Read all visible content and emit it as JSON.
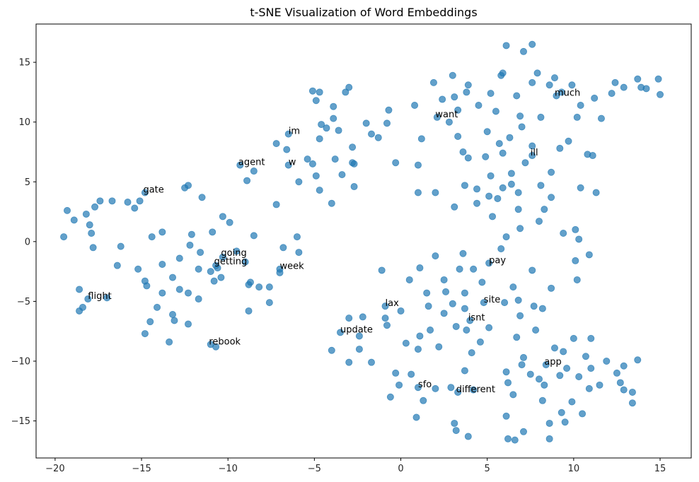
{
  "chart_data": {
    "type": "scatter",
    "title": "t-SNE Visualization of Word Embeddings",
    "xlabel": "",
    "ylabel": "",
    "xlim": [
      -21.1,
      16.8
    ],
    "ylim": [
      -18.1,
      18.2
    ],
    "xticks": [
      -20,
      -15,
      -10,
      -5,
      0,
      5,
      10,
      15
    ],
    "yticks": [
      -15,
      -10,
      -5,
      0,
      5,
      10,
      15
    ],
    "grid": false,
    "point_color": "#1f77b4",
    "point_opacity": 0.7,
    "points": [
      [
        -19.5,
        0.4
      ],
      [
        -19.3,
        2.6
      ],
      [
        -18.9,
        1.8
      ],
      [
        -18.6,
        -4.0
      ],
      [
        -18.6,
        -5.8
      ],
      [
        -18.4,
        -5.5
      ],
      [
        -18.2,
        2.3
      ],
      [
        -18.1,
        -4.8
      ],
      [
        -18.0,
        1.4
      ],
      [
        -17.9,
        0.7
      ],
      [
        -17.8,
        -0.5
      ],
      [
        -17.7,
        2.9
      ],
      [
        -17.4,
        3.4
      ],
      [
        -17.0,
        -4.7
      ],
      [
        -16.7,
        3.4
      ],
      [
        -16.4,
        -2.0
      ],
      [
        -16.2,
        -0.4
      ],
      [
        -15.8,
        3.3
      ],
      [
        -15.4,
        2.8
      ],
      [
        -15.2,
        -2.3
      ],
      [
        -15.1,
        3.4
      ],
      [
        -14.8,
        4.1
      ],
      [
        -14.8,
        -7.7
      ],
      [
        -14.8,
        -3.3
      ],
      [
        -14.7,
        -3.7
      ],
      [
        -14.5,
        -6.7
      ],
      [
        -14.4,
        0.4
      ],
      [
        -14.1,
        -5.5
      ],
      [
        -13.8,
        -1.9
      ],
      [
        -13.8,
        0.8
      ],
      [
        -13.8,
        -4.3
      ],
      [
        -13.4,
        -8.4
      ],
      [
        -13.2,
        -6.1
      ],
      [
        -13.2,
        -3.0
      ],
      [
        -13.1,
        -6.6
      ],
      [
        -12.8,
        -4.0
      ],
      [
        -12.8,
        -1.4
      ],
      [
        -12.5,
        4.5
      ],
      [
        -12.3,
        4.7
      ],
      [
        -12.3,
        -4.3
      ],
      [
        -12.3,
        -6.9
      ],
      [
        -12.2,
        -0.3
      ],
      [
        -12.1,
        0.6
      ],
      [
        -11.7,
        -4.8
      ],
      [
        -11.7,
        -2.3
      ],
      [
        -11.6,
        -0.9
      ],
      [
        -11.5,
        3.7
      ],
      [
        -11.0,
        -2.5
      ],
      [
        -11.0,
        -8.6
      ],
      [
        -10.9,
        0.8
      ],
      [
        -10.8,
        -3.3
      ],
      [
        -10.7,
        -8.8
      ],
      [
        -10.7,
        -2.0
      ],
      [
        -10.6,
        -2.2
      ],
      [
        -10.4,
        -3.0
      ],
      [
        -10.3,
        2.1
      ],
      [
        -10.3,
        -1.3
      ],
      [
        -9.9,
        1.6
      ],
      [
        -9.5,
        -0.8
      ],
      [
        -9.3,
        6.4
      ],
      [
        -9.0,
        -1.7
      ],
      [
        -8.9,
        5.1
      ],
      [
        -8.8,
        -5.8
      ],
      [
        -8.8,
        -3.6
      ],
      [
        -8.7,
        -3.4
      ],
      [
        -8.5,
        0.5
      ],
      [
        -8.5,
        5.9
      ],
      [
        -8.2,
        -3.8
      ],
      [
        -7.6,
        -3.8
      ],
      [
        -7.6,
        -5.1
      ],
      [
        -7.2,
        3.1
      ],
      [
        -7.2,
        8.2
      ],
      [
        -7.0,
        -2.3
      ],
      [
        -7.0,
        -2.6
      ],
      [
        -6.8,
        -0.5
      ],
      [
        -6.6,
        7.7
      ],
      [
        -6.5,
        6.4
      ],
      [
        -6.5,
        9.0
      ],
      [
        -6.0,
        0.4
      ],
      [
        -5.9,
        -0.9
      ],
      [
        -5.9,
        5.0
      ],
      [
        -5.4,
        6.9
      ],
      [
        -5.1,
        6.5
      ],
      [
        -5.1,
        12.6
      ],
      [
        -4.9,
        5.5
      ],
      [
        -4.9,
        11.8
      ],
      [
        -4.7,
        8.6
      ],
      [
        -4.7,
        4.3
      ],
      [
        -4.7,
        12.5
      ],
      [
        -4.6,
        9.8
      ],
      [
        -4.3,
        9.5
      ],
      [
        -4.0,
        3.2
      ],
      [
        -4.0,
        -9.1
      ],
      [
        -3.9,
        10.3
      ],
      [
        -3.9,
        11.3
      ],
      [
        -3.8,
        6.9
      ],
      [
        -3.6,
        9.3
      ],
      [
        -3.5,
        -7.6
      ],
      [
        -3.4,
        5.6
      ],
      [
        -3.2,
        12.5
      ],
      [
        -3.0,
        12.9
      ],
      [
        -3.0,
        -6.4
      ],
      [
        -3.0,
        -10.1
      ],
      [
        -2.8,
        6.6
      ],
      [
        -2.8,
        7.9
      ],
      [
        -2.7,
        6.5
      ],
      [
        -2.7,
        4.6
      ],
      [
        -2.4,
        -9.0
      ],
      [
        -2.4,
        -7.9
      ],
      [
        -2.2,
        -6.3
      ],
      [
        -2.0,
        9.9
      ],
      [
        -1.7,
        9.0
      ],
      [
        -1.7,
        -10.1
      ],
      [
        -1.3,
        8.7
      ],
      [
        -1.1,
        -2.4
      ],
      [
        -0.9,
        -5.4
      ],
      [
        -0.9,
        -6.4
      ],
      [
        -0.8,
        -7.0
      ],
      [
        -0.8,
        9.9
      ],
      [
        -0.7,
        11.0
      ],
      [
        -0.6,
        -13.0
      ],
      [
        -0.3,
        6.6
      ],
      [
        -0.3,
        -11.0
      ],
      [
        -0.1,
        -12.0
      ],
      [
        0.0,
        -5.8
      ],
      [
        0.3,
        -8.5
      ],
      [
        0.5,
        -3.2
      ],
      [
        0.6,
        -11.1
      ],
      [
        0.8,
        11.4
      ],
      [
        0.9,
        -14.7
      ],
      [
        1.0,
        -12.2
      ],
      [
        1.0,
        -9.0
      ],
      [
        1.0,
        6.4
      ],
      [
        1.0,
        4.1
      ],
      [
        1.1,
        -2.2
      ],
      [
        1.1,
        -7.9
      ],
      [
        1.2,
        8.6
      ],
      [
        1.3,
        -13.3
      ],
      [
        1.5,
        -4.3
      ],
      [
        1.6,
        -5.4
      ],
      [
        1.7,
        -7.4
      ],
      [
        1.9,
        13.3
      ],
      [
        2.0,
        4.1
      ],
      [
        2.0,
        -1.2
      ],
      [
        2.0,
        -12.3
      ],
      [
        2.1,
        10.4
      ],
      [
        2.2,
        -8.8
      ],
      [
        2.4,
        11.9
      ],
      [
        2.5,
        -6.0
      ],
      [
        2.5,
        -3.2
      ],
      [
        2.6,
        -4.2
      ],
      [
        2.8,
        10.0
      ],
      [
        2.9,
        -12.2
      ],
      [
        3.0,
        -5.2
      ],
      [
        3.0,
        13.9
      ],
      [
        3.1,
        2.9
      ],
      [
        3.1,
        -15.2
      ],
      [
        3.1,
        12.1
      ],
      [
        3.2,
        -7.1
      ],
      [
        3.3,
        -12.6
      ],
      [
        3.2,
        -15.8
      ],
      [
        3.3,
        8.8
      ],
      [
        3.3,
        11.0
      ],
      [
        3.4,
        -2.3
      ],
      [
        3.6,
        7.5
      ],
      [
        3.6,
        -1.0
      ],
      [
        3.7,
        -5.6
      ],
      [
        3.7,
        4.7
      ],
      [
        3.7,
        -10.8
      ],
      [
        3.7,
        -4.3
      ],
      [
        3.8,
        12.5
      ],
      [
        3.8,
        -7.4
      ],
      [
        3.9,
        7.0
      ],
      [
        3.9,
        13.1
      ],
      [
        3.9,
        -16.3
      ],
      [
        4.0,
        -6.6
      ],
      [
        4.1,
        -9.3
      ],
      [
        4.2,
        -12.4
      ],
      [
        4.2,
        -2.3
      ],
      [
        4.4,
        3.2
      ],
      [
        4.4,
        4.4
      ],
      [
        4.5,
        11.4
      ],
      [
        4.6,
        -8.4
      ],
      [
        4.7,
        -3.4
      ],
      [
        4.8,
        -5.1
      ],
      [
        4.9,
        7.1
      ],
      [
        5.0,
        9.2
      ],
      [
        5.1,
        3.8
      ],
      [
        5.1,
        -1.8
      ],
      [
        5.1,
        -7.2
      ],
      [
        5.2,
        5.5
      ],
      [
        5.2,
        12.4
      ],
      [
        5.3,
        2.1
      ],
      [
        5.5,
        10.9
      ],
      [
        5.6,
        3.6
      ],
      [
        5.7,
        8.2
      ],
      [
        5.8,
        -0.6
      ],
      [
        5.8,
        13.9
      ],
      [
        5.9,
        7.4
      ],
      [
        5.9,
        14.1
      ],
      [
        5.9,
        4.5
      ],
      [
        6.0,
        -5.1
      ],
      [
        6.1,
        0.4
      ],
      [
        6.1,
        16.4
      ],
      [
        6.1,
        -10.9
      ],
      [
        6.1,
        -14.6
      ],
      [
        6.2,
        -16.5
      ],
      [
        6.2,
        -11.8
      ],
      [
        6.3,
        8.7
      ],
      [
        6.4,
        4.8
      ],
      [
        6.4,
        5.7
      ],
      [
        6.5,
        -3.8
      ],
      [
        6.5,
        -12.8
      ],
      [
        6.6,
        -16.6
      ],
      [
        6.7,
        12.2
      ],
      [
        6.7,
        -8.0
      ],
      [
        6.8,
        2.7
      ],
      [
        6.8,
        -4.9
      ],
      [
        6.8,
        4.1
      ],
      [
        6.9,
        1.1
      ],
      [
        6.9,
        -6.2
      ],
      [
        6.9,
        10.5
      ],
      [
        7.0,
        -10.3
      ],
      [
        7.0,
        9.6
      ],
      [
        7.1,
        -9.7
      ],
      [
        7.1,
        15.9
      ],
      [
        7.1,
        -15.9
      ],
      [
        7.2,
        6.6
      ],
      [
        7.5,
        -11.1
      ],
      [
        7.6,
        13.3
      ],
      [
        7.6,
        8.0
      ],
      [
        7.6,
        7.2
      ],
      [
        7.6,
        -2.4
      ],
      [
        7.6,
        16.5
      ],
      [
        7.7,
        -5.4
      ],
      [
        7.8,
        -7.4
      ],
      [
        7.9,
        14.1
      ],
      [
        8.0,
        -11.5
      ],
      [
        8.0,
        1.7
      ],
      [
        8.1,
        4.7
      ],
      [
        8.1,
        10.4
      ],
      [
        8.2,
        -13.3
      ],
      [
        8.2,
        -5.6
      ],
      [
        8.3,
        2.7
      ],
      [
        8.3,
        -12.0
      ],
      [
        8.4,
        -10.3
      ],
      [
        8.6,
        13.1
      ],
      [
        8.6,
        -15.2
      ],
      [
        8.6,
        -16.5
      ],
      [
        8.7,
        3.7
      ],
      [
        8.7,
        5.8
      ],
      [
        8.7,
        -3.9
      ],
      [
        8.9,
        -8.9
      ],
      [
        8.9,
        13.7
      ],
      [
        9.0,
        12.2
      ],
      [
        9.2,
        7.8
      ],
      [
        9.2,
        -11.2
      ],
      [
        9.3,
        12.5
      ],
      [
        9.3,
        -14.3
      ],
      [
        9.4,
        -9.2
      ],
      [
        9.4,
        0.7
      ],
      [
        9.5,
        -15.1
      ],
      [
        9.6,
        -10.6
      ],
      [
        9.7,
        8.4
      ],
      [
        9.9,
        -13.4
      ],
      [
        9.9,
        13.1
      ],
      [
        10.0,
        -8.1
      ],
      [
        10.1,
        -1.6
      ],
      [
        10.1,
        1.0
      ],
      [
        10.2,
        10.4
      ],
      [
        10.2,
        -3.2
      ],
      [
        10.3,
        0.2
      ],
      [
        10.3,
        -11.3
      ],
      [
        10.4,
        4.5
      ],
      [
        10.4,
        11.4
      ],
      [
        10.5,
        -14.4
      ],
      [
        10.7,
        -9.6
      ],
      [
        10.8,
        7.3
      ],
      [
        10.9,
        -12.3
      ],
      [
        10.9,
        -1.1
      ],
      [
        11.0,
        -8.1
      ],
      [
        11.0,
        -10.6
      ],
      [
        11.1,
        7.2
      ],
      [
        11.2,
        12.0
      ],
      [
        11.3,
        4.1
      ],
      [
        11.5,
        -12.0
      ],
      [
        11.6,
        10.3
      ],
      [
        11.9,
        -10.0
      ],
      [
        12.2,
        12.4
      ],
      [
        12.4,
        13.3
      ],
      [
        12.5,
        -11.0
      ],
      [
        12.7,
        -11.8
      ],
      [
        12.9,
        -10.4
      ],
      [
        12.9,
        12.9
      ],
      [
        12.9,
        -12.4
      ],
      [
        13.4,
        -13.5
      ],
      [
        13.4,
        -12.6
      ],
      [
        13.7,
        13.6
      ],
      [
        13.7,
        -9.9
      ],
      [
        13.9,
        12.9
      ],
      [
        14.2,
        12.8
      ],
      [
        14.9,
        13.6
      ],
      [
        15.0,
        12.3
      ]
    ],
    "labels": [
      {
        "word": "much",
        "x": 8.9,
        "y": 12.2
      },
      {
        "word": "want",
        "x": 2.0,
        "y": 10.4
      },
      {
        "word": "im",
        "x": -6.5,
        "y": 9.0
      },
      {
        "word": "ill",
        "x": 7.5,
        "y": 7.2
      },
      {
        "word": "agent",
        "x": -9.4,
        "y": 6.4
      },
      {
        "word": "w",
        "x": -6.5,
        "y": 6.4
      },
      {
        "word": "gate",
        "x": -14.9,
        "y": 4.1
      },
      {
        "word": "going",
        "x": -10.4,
        "y": -1.2
      },
      {
        "word": "getting",
        "x": -10.8,
        "y": -1.9
      },
      {
        "word": "week",
        "x": -7.0,
        "y": -2.3
      },
      {
        "word": "pay",
        "x": 5.1,
        "y": -1.8
      },
      {
        "word": "flight",
        "x": -18.1,
        "y": -4.8
      },
      {
        "word": "site",
        "x": 4.8,
        "y": -5.1
      },
      {
        "word": "lax",
        "x": -0.9,
        "y": -5.4
      },
      {
        "word": "isnt",
        "x": 3.9,
        "y": -6.6
      },
      {
        "word": "update",
        "x": -3.5,
        "y": -7.6
      },
      {
        "word": "rebook",
        "x": -11.1,
        "y": -8.6
      },
      {
        "word": "app",
        "x": 8.3,
        "y": -10.3
      },
      {
        "word": "sfo",
        "x": 1.0,
        "y": -12.2
      },
      {
        "word": "different",
        "x": 3.2,
        "y": -12.6
      }
    ]
  }
}
